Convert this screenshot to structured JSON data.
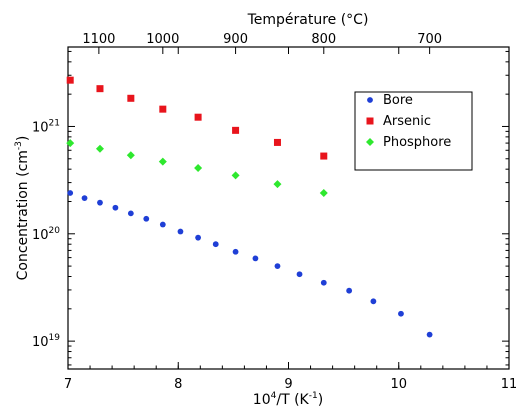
{
  "chart_data": {
    "type": "scatter",
    "title": "",
    "xlabel_base": "10",
    "xlabel_sup": "4",
    "xlabel_mid": "/T (K",
    "xlabel_sup2": "-1",
    "xlabel_end": ")",
    "ylabel_main": "Concentration (cm",
    "ylabel_sup": "-3",
    "ylabel_end": ")",
    "top_axis_label": "Température (°C)",
    "xlim": [
      7,
      11
    ],
    "ylog": true,
    "ylim": [
      5.5e+18,
      5.5e+21
    ],
    "grid": false,
    "legend_position": "top-right",
    "x_ticks": [
      "7",
      "8",
      "9",
      "10",
      "11"
    ],
    "x_tick_values": [
      7,
      8,
      9,
      10,
      11
    ],
    "y_ticks": [
      {
        "value": 1e+19,
        "base": "10",
        "exp": "19"
      },
      {
        "value": 1e+20,
        "base": "10",
        "exp": "20"
      },
      {
        "value": 1e+21,
        "base": "10",
        "exp": "21"
      }
    ],
    "top_ticks": [
      {
        "label": "1100",
        "x": 7.28
      },
      {
        "label": "1000",
        "x": 7.86
      },
      {
        "label": "900",
        "x": 8.52
      },
      {
        "label": "800",
        "x": 9.32
      },
      {
        "label": "700",
        "x": 10.28
      }
    ],
    "series": [
      {
        "name": "Bore",
        "color": "#1f3fd6",
        "marker": "circle",
        "x": [
          7.02,
          7.15,
          7.29,
          7.43,
          7.57,
          7.71,
          7.86,
          8.02,
          8.18,
          8.34,
          8.52,
          8.7,
          8.9,
          9.1,
          9.32,
          9.55,
          9.77,
          10.02,
          10.28
        ],
        "y": [
          2.4e+20,
          2.15e+20,
          1.95e+20,
          1.75e+20,
          1.55e+20,
          1.38e+20,
          1.22e+20,
          1.05e+20,
          9.2e+19,
          8e+19,
          6.8e+19,
          5.9e+19,
          5e+19,
          4.2e+19,
          3.5e+19,
          2.95e+19,
          2.35e+19,
          1.8e+19,
          1.15e+19
        ]
      },
      {
        "name": "Arsenic",
        "color": "#e8141c",
        "marker": "square",
        "x": [
          7.02,
          7.29,
          7.57,
          7.86,
          8.18,
          8.52,
          8.9,
          9.32
        ],
        "y": [
          2.7e+21,
          2.25e+21,
          1.83e+21,
          1.45e+21,
          1.22e+21,
          9.2e+20,
          7.1e+20,
          5.3e+20
        ]
      },
      {
        "name": "Phosphore",
        "color": "#2ee82e",
        "marker": "diamond",
        "x": [
          7.02,
          7.29,
          7.57,
          7.86,
          8.18,
          8.52,
          8.9,
          9.32
        ],
        "y": [
          7e+20,
          6.2e+20,
          5.4e+20,
          4.7e+20,
          4.1e+20,
          3.5e+20,
          2.9e+20,
          2.4e+20
        ]
      }
    ]
  }
}
